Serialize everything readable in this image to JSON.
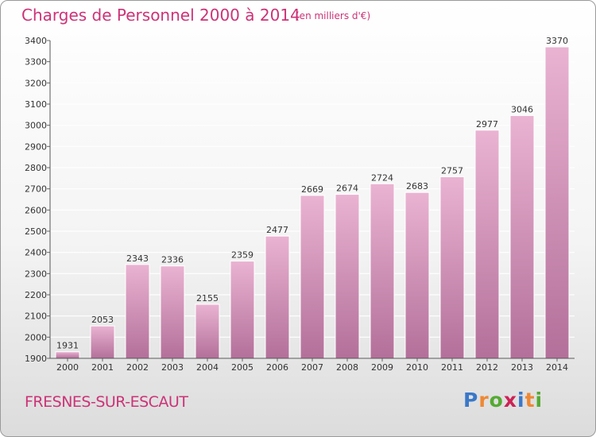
{
  "header": {
    "title": "Charges de Personnel 2000 à 2014",
    "subtitle": "(en milliers d'€)"
  },
  "footer": {
    "commune": "FRESNES-SUR-ESCAUT",
    "logo": {
      "letters": [
        "P",
        "r",
        "o",
        "x",
        "i",
        "t",
        "i"
      ],
      "colors": [
        "#3a78c8",
        "#ee8833",
        "#55aa33",
        "#cc2255",
        "#3a78c8",
        "#ee8833",
        "#55aa33"
      ]
    }
  },
  "colors": {
    "bar_light": "#eab3d2",
    "bar_dark": "#b3709a",
    "bar_edge": "#ffffff",
    "grid": "#ffffff",
    "text": "#333333",
    "accent": "#cc3377"
  },
  "chart_data": {
    "type": "bar",
    "categories": [
      "2000",
      "2001",
      "2002",
      "2003",
      "2004",
      "2005",
      "2006",
      "2007",
      "2008",
      "2009",
      "2010",
      "2011",
      "2012",
      "2013",
      "2014"
    ],
    "values": [
      1931,
      2053,
      2343,
      2336,
      2155,
      2359,
      2477,
      2669,
      2674,
      2724,
      2683,
      2757,
      2977,
      3046,
      3370
    ],
    "value_labels": [
      "1931",
      "2053",
      "2343",
      "2336",
      "2155",
      "2359",
      "2477",
      "2669",
      "2674",
      "2724",
      "2683",
      "2757",
      "2977",
      "3046",
      "3370"
    ],
    "title": "Charges de Personnel 2000 à 2014",
    "xlabel": "",
    "ylabel": "",
    "ylim": [
      1900,
      3400
    ],
    "yticks": [
      1900,
      2000,
      2100,
      2200,
      2300,
      2400,
      2500,
      2600,
      2700,
      2800,
      2900,
      3000,
      3100,
      3200,
      3300,
      3400
    ],
    "grid": true
  }
}
